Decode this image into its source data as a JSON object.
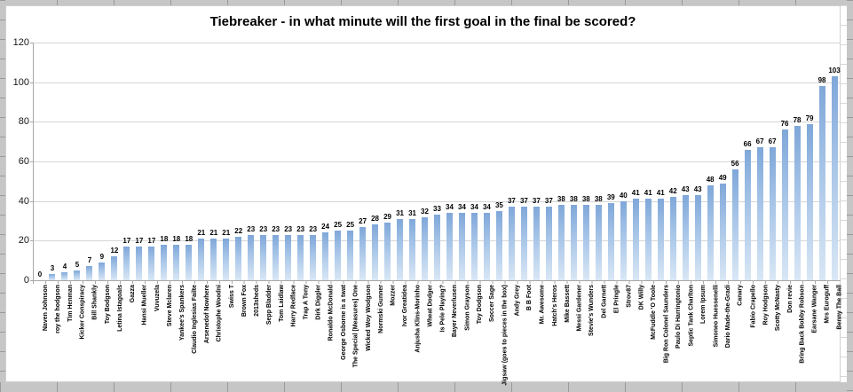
{
  "chart_data": {
    "type": "bar",
    "title": "Tiebreaker - in what minute will the first goal in the final be scored?",
    "xlabel": "",
    "ylabel": "",
    "ylim": [
      0,
      120
    ],
    "yticks": [
      0,
      20,
      40,
      60,
      80,
      100,
      120
    ],
    "grid": true,
    "legend": "none",
    "categories": [
      "Naven Johnson",
      "roy the hodgson",
      "Tim Henman",
      "Kicker Conspiracy",
      "Bill Shankly",
      "Toy Bodgson",
      "Letina Istagoals",
      "Gazza",
      "Hansi Mueller",
      "Vuvuzela",
      "Steve Mclaren",
      "Yankee's Spankers",
      "Claudio Inglesias Failte",
      "Arsenedof Nowhere",
      "Christophe Woodni",
      "Swiss T",
      "Brown Fox",
      "2013sheds",
      "Sepp Bladder",
      "Tom Laidlaw",
      "Harry Redface",
      "Trap A Tony",
      "Dirk Diggler",
      "Ronaldo McDonald",
      "George Osborne is a twat",
      "The Special [Measures] One",
      "Wicked Woy Wodgson",
      "Normski Gunner",
      "Mozzer",
      "Ivor Greatidea",
      "Anjusha Klins-Morinho",
      "Wheat Dodger",
      "Is Pele Playing?",
      "Bayer Neverlusen",
      "Simon Grayson",
      "Toy Dodgson",
      "Soccer Sage",
      "Jigsaw (goes to pieces in the box)",
      "Andy Grey",
      "B B Foot",
      "Mr. Awesome",
      "Hatch's Heros",
      "Mike Bassett",
      "Messi Gardener",
      "Stevie's Wunders",
      "Del Garnett",
      "El Pringle",
      "Strov87",
      "DK Willy",
      "McFuddle 'O Toole",
      "Big Ron Colonel Saunders",
      "Paulo Di Harringtonio",
      "Septic Tank Charlton",
      "Lorem Ipsum",
      "Simoneo Huessenelli",
      "Dario Made-the-Gradi",
      "Canary",
      "Fabio Crapello",
      "Roy Hodgson",
      "Scotty McNasty",
      "Don revie",
      "Bring Back Bobby Robson",
      "Earsane Wanger",
      "Mrs Euroguff",
      "Benny The Ball"
    ],
    "values": [
      0,
      3,
      4,
      5,
      7,
      9,
      12,
      17,
      17,
      17,
      18,
      18,
      18,
      21,
      21,
      21,
      22,
      23,
      23,
      23,
      23,
      23,
      23,
      24,
      25,
      25,
      27,
      28,
      29,
      31,
      31,
      32,
      33,
      34,
      34,
      34,
      34,
      35,
      37,
      37,
      37,
      37,
      38,
      38,
      38,
      38,
      39,
      40,
      41,
      41,
      41,
      42,
      43,
      43,
      48,
      49,
      56,
      66,
      67,
      67,
      76,
      78,
      79,
      98,
      103
    ],
    "style": {
      "bar_gradient_top": "#7fa7d9",
      "bar_gradient_mid": "#a9c6e8",
      "bar_gradient_bottom": "#d9e7f5",
      "gridline_color": "#d6d6d6",
      "axis_color": "#a6a6a6",
      "title_color": "#000000"
    }
  }
}
